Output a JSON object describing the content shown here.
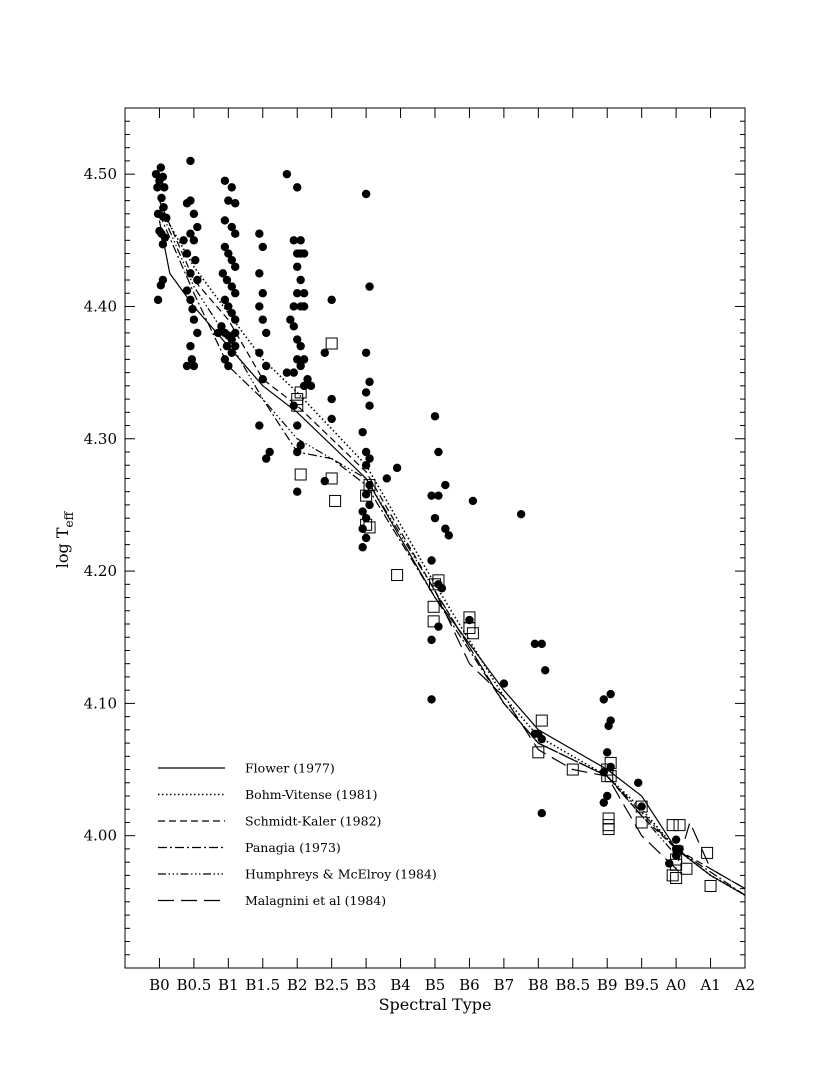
{
  "chart_data": {
    "type": "scatter",
    "xlabel": "Spectral Type",
    "ylabel": "log T",
    "ylabel_sub": "eff",
    "x_ticks": [
      {
        "x": 0,
        "label": "B0"
      },
      {
        "x": 0.5,
        "label": "B0.5"
      },
      {
        "x": 1,
        "label": "B1"
      },
      {
        "x": 1.5,
        "label": "B1.5"
      },
      {
        "x": 2,
        "label": "B2"
      },
      {
        "x": 2.5,
        "label": "B2.5"
      },
      {
        "x": 3,
        "label": "B3"
      },
      {
        "x": 3.5,
        "label": "B4"
      },
      {
        "x": 4,
        "label": "B5"
      },
      {
        "x": 4.5,
        "label": "B6"
      },
      {
        "x": 5,
        "label": "B7"
      },
      {
        "x": 5.5,
        "label": "B8"
      },
      {
        "x": 6,
        "label": "B8.5"
      },
      {
        "x": 6.5,
        "label": "B9"
      },
      {
        "x": 7,
        "label": "B9.5"
      },
      {
        "x": 7.5,
        "label": "A0"
      },
      {
        "x": 8,
        "label": "A1"
      },
      {
        "x": 8.5,
        "label": "A2"
      }
    ],
    "xlim": [
      -0.5,
      8.5
    ],
    "ylim": [
      3.9,
      4.55
    ],
    "y_ticks": [
      {
        "y": 4.0,
        "label": "4.00"
      },
      {
        "y": 4.1,
        "label": "4.10"
      },
      {
        "y": 4.2,
        "label": "4.20"
      },
      {
        "y": 4.3,
        "label": "4.30"
      },
      {
        "y": 4.4,
        "label": "4.40"
      },
      {
        "y": 4.5,
        "label": "4.50"
      }
    ],
    "series": [
      {
        "name": "Flower (1977)",
        "style": "solid",
        "x": [
          0,
          0.15,
          0.5,
          1,
          1.5,
          2,
          3,
          4,
          5,
          5.5,
          6.5,
          7,
          7.5,
          8,
          8.5
        ],
        "y": [
          4.465,
          4.425,
          4.4,
          4.37,
          4.34,
          4.32,
          4.27,
          4.18,
          4.11,
          4.08,
          4.05,
          4.03,
          3.99,
          3.97,
          3.955
        ]
      },
      {
        "name": "Bohm-Vitense (1981)",
        "style": "dotted",
        "x": [
          0,
          0.5,
          1,
          1.5,
          2,
          3,
          4,
          5,
          5.5,
          6.5,
          7,
          7.5,
          8,
          8.5
        ],
        "y": [
          4.475,
          4.43,
          4.395,
          4.36,
          4.335,
          4.28,
          4.19,
          4.105,
          4.075,
          4.045,
          4.02,
          3.99,
          3.97,
          3.955
        ]
      },
      {
        "name": "Schmidt-Kaler (1982)",
        "style": "dashed",
        "x": [
          0,
          0.5,
          1,
          1.5,
          2,
          3,
          4,
          5,
          5.5,
          6.5,
          7,
          7.5,
          8,
          8.5
        ],
        "y": [
          4.48,
          4.42,
          4.39,
          4.345,
          4.325,
          4.275,
          4.185,
          4.1,
          4.07,
          4.045,
          4.015,
          3.99,
          3.975,
          3.96
        ]
      },
      {
        "name": "Panagia (1973)",
        "style": "dashdot",
        "x": [
          0,
          0.5,
          1,
          1.5,
          2,
          2.5,
          3,
          4,
          5,
          5.5,
          6.5,
          7.5,
          8.5
        ],
        "y": [
          4.47,
          4.41,
          4.355,
          4.33,
          4.29,
          4.285,
          4.265,
          4.18,
          4.1,
          4.07,
          4.045,
          3.99,
          3.955
        ]
      },
      {
        "name": "Humphreys & McElroy (1984)",
        "style": "dashdotdotdot",
        "x": [
          0,
          0.5,
          1,
          1.5,
          2,
          3,
          4,
          5,
          5.5,
          6.5,
          7.5
        ],
        "y": [
          4.475,
          4.415,
          4.375,
          4.33,
          4.3,
          4.27,
          4.185,
          4.1,
          4.07,
          4.045,
          3.985
        ]
      },
      {
        "name": "Malagnini et al (1984)",
        "style": "longdash",
        "x": [
          4,
          4.5,
          5,
          5.5,
          6,
          6.5,
          7,
          7.5,
          7.7,
          8,
          8.5
        ],
        "y": [
          4.185,
          4.13,
          4.105,
          4.065,
          4.05,
          4.045,
          4.0,
          3.975,
          4.01,
          3.975,
          3.96
        ]
      }
    ],
    "filled_points": [
      [
        -0.05,
        4.5
      ],
      [
        -0.03,
        4.49
      ],
      [
        0,
        4.495
      ],
      [
        0.02,
        4.505
      ],
      [
        0.05,
        4.498
      ],
      [
        0.07,
        4.49
      ],
      [
        0.03,
        4.482
      ],
      [
        0.06,
        4.475
      ],
      [
        0.05,
        4.468
      ],
      [
        -0.02,
        4.47
      ],
      [
        0.03,
        4.455
      ],
      [
        0.08,
        4.452
      ],
      [
        0.1,
        4.467
      ],
      [
        0.05,
        4.447
      ],
      [
        0.02,
        4.416
      ],
      [
        0.05,
        4.42
      ],
      [
        -0.02,
        4.405
      ],
      [
        0.0,
        4.457
      ],
      [
        0.35,
        4.45
      ],
      [
        0.4,
        4.478
      ],
      [
        0.45,
        4.48
      ],
      [
        0.5,
        4.47
      ],
      [
        0.45,
        4.455
      ],
      [
        0.5,
        4.45
      ],
      [
        0.55,
        4.46
      ],
      [
        0.4,
        4.44
      ],
      [
        0.45,
        4.425
      ],
      [
        0.52,
        4.435
      ],
      [
        0.55,
        4.42
      ],
      [
        0.4,
        4.412
      ],
      [
        0.45,
        4.405
      ],
      [
        0.48,
        4.398
      ],
      [
        0.5,
        4.39
      ],
      [
        0.45,
        4.37
      ],
      [
        0.47,
        4.36
      ],
      [
        0.5,
        4.355
      ],
      [
        0.4,
        4.355
      ],
      [
        0.45,
        4.51
      ],
      [
        0.55,
        4.38
      ],
      [
        0.95,
        4.495
      ],
      [
        1.05,
        4.49
      ],
      [
        1.0,
        4.48
      ],
      [
        1.1,
        4.478
      ],
      [
        0.95,
        4.465
      ],
      [
        1.05,
        4.46
      ],
      [
        1.1,
        4.455
      ],
      [
        0.95,
        4.445
      ],
      [
        1.0,
        4.44
      ],
      [
        1.05,
        4.435
      ],
      [
        1.1,
        4.43
      ],
      [
        0.92,
        4.425
      ],
      [
        0.98,
        4.42
      ],
      [
        1.05,
        4.415
      ],
      [
        1.1,
        4.41
      ],
      [
        0.95,
        4.405
      ],
      [
        1.0,
        4.4
      ],
      [
        1.05,
        4.395
      ],
      [
        1.1,
        4.39
      ],
      [
        0.9,
        4.385
      ],
      [
        0.95,
        4.38
      ],
      [
        1.0,
        4.378
      ],
      [
        1.05,
        4.375
      ],
      [
        1.1,
        4.38
      ],
      [
        0.98,
        4.37
      ],
      [
        1.05,
        4.365
      ],
      [
        0.95,
        4.36
      ],
      [
        1.0,
        4.355
      ],
      [
        1.1,
        4.37
      ],
      [
        0.85,
        4.38
      ],
      [
        1.45,
        4.455
      ],
      [
        1.5,
        4.445
      ],
      [
        1.45,
        4.425
      ],
      [
        1.5,
        4.41
      ],
      [
        1.45,
        4.4
      ],
      [
        1.5,
        4.39
      ],
      [
        1.55,
        4.38
      ],
      [
        1.45,
        4.365
      ],
      [
        1.55,
        4.355
      ],
      [
        1.5,
        4.345
      ],
      [
        1.45,
        4.31
      ],
      [
        1.55,
        4.285
      ],
      [
        1.6,
        4.29
      ],
      [
        1.85,
        4.5
      ],
      [
        2.0,
        4.49
      ],
      [
        1.95,
        4.45
      ],
      [
        2.05,
        4.45
      ],
      [
        2.0,
        4.44
      ],
      [
        2.05,
        4.44
      ],
      [
        2.1,
        4.44
      ],
      [
        2.0,
        4.43
      ],
      [
        2.05,
        4.42
      ],
      [
        2.0,
        4.41
      ],
      [
        2.1,
        4.41
      ],
      [
        1.95,
        4.4
      ],
      [
        2.05,
        4.4
      ],
      [
        2.1,
        4.4
      ],
      [
        1.9,
        4.39
      ],
      [
        1.95,
        4.385
      ],
      [
        2.0,
        4.375
      ],
      [
        2.05,
        4.37
      ],
      [
        2.1,
        4.36
      ],
      [
        2.0,
        4.36
      ],
      [
        2.05,
        4.355
      ],
      [
        2.15,
        4.345
      ],
      [
        2.1,
        4.34
      ],
      [
        2.2,
        4.34
      ],
      [
        1.95,
        4.35
      ],
      [
        1.95,
        4.325
      ],
      [
        2.0,
        4.31
      ],
      [
        2.05,
        4.295
      ],
      [
        2.0,
        4.29
      ],
      [
        2.0,
        4.26
      ],
      [
        1.85,
        4.35
      ],
      [
        2.4,
        4.365
      ],
      [
        2.5,
        4.405
      ],
      [
        2.5,
        4.33
      ],
      [
        2.5,
        4.315
      ],
      [
        2.4,
        4.268
      ],
      [
        3.0,
        4.485
      ],
      [
        3.05,
        4.415
      ],
      [
        3.0,
        4.365
      ],
      [
        3.05,
        4.343
      ],
      [
        3.0,
        4.335
      ],
      [
        3.05,
        4.325
      ],
      [
        2.95,
        4.305
      ],
      [
        3.0,
        4.29
      ],
      [
        3.05,
        4.285
      ],
      [
        3.0,
        4.28
      ],
      [
        3.05,
        4.265
      ],
      [
        3.0,
        4.258
      ],
      [
        3.05,
        4.25
      ],
      [
        2.95,
        4.245
      ],
      [
        3.0,
        4.24
      ],
      [
        2.95,
        4.232
      ],
      [
        3.0,
        4.225
      ],
      [
        2.95,
        4.218
      ],
      [
        3.3,
        4.27
      ],
      [
        3.45,
        4.278
      ],
      [
        4.0,
        4.317
      ],
      [
        4.05,
        4.29
      ],
      [
        3.95,
        4.257
      ],
      [
        4.05,
        4.257
      ],
      [
        4.15,
        4.265
      ],
      [
        4.15,
        4.232
      ],
      [
        4.2,
        4.227
      ],
      [
        4.0,
        4.24
      ],
      [
        3.95,
        4.208
      ],
      [
        4.05,
        4.19
      ],
      [
        4.1,
        4.187
      ],
      [
        4.05,
        4.158
      ],
      [
        3.95,
        4.148
      ],
      [
        3.95,
        4.103
      ],
      [
        4.55,
        4.253
      ],
      [
        4.5,
        4.163
      ],
      [
        5.0,
        4.115
      ],
      [
        5.25,
        4.243
      ],
      [
        5.45,
        4.145
      ],
      [
        5.55,
        4.145
      ],
      [
        5.6,
        4.125
      ],
      [
        5.45,
        4.077
      ],
      [
        5.5,
        4.077
      ],
      [
        5.55,
        4.073
      ],
      [
        5.55,
        4.017
      ],
      [
        6.45,
        4.103
      ],
      [
        6.55,
        4.107
      ],
      [
        6.55,
        4.087
      ],
      [
        6.52,
        4.083
      ],
      [
        6.5,
        4.063
      ],
      [
        6.45,
        4.048
      ],
      [
        6.55,
        4.052
      ],
      [
        6.5,
        4.03
      ],
      [
        6.45,
        4.025
      ],
      [
        6.95,
        4.04
      ],
      [
        7.0,
        4.022
      ],
      [
        7.4,
        3.979
      ],
      [
        7.5,
        3.997
      ],
      [
        7.5,
        3.99
      ],
      [
        7.55,
        3.99
      ],
      [
        7.5,
        3.985
      ]
    ],
    "open_points": [
      [
        2.5,
        4.372
      ],
      [
        2.0,
        4.33
      ],
      [
        2.05,
        4.335
      ],
      [
        2.0,
        4.325
      ],
      [
        2.05,
        4.273
      ],
      [
        2.5,
        4.27
      ],
      [
        2.55,
        4.253
      ],
      [
        3.0,
        4.257
      ],
      [
        3.05,
        4.265
      ],
      [
        3.0,
        4.235
      ],
      [
        3.05,
        4.233
      ],
      [
        3.45,
        4.197
      ],
      [
        4.0,
        4.19
      ],
      [
        4.05,
        4.193
      ],
      [
        3.98,
        4.173
      ],
      [
        3.98,
        4.162
      ],
      [
        4.5,
        4.165
      ],
      [
        4.5,
        4.157
      ],
      [
        4.55,
        4.153
      ],
      [
        5.55,
        4.087
      ],
      [
        5.5,
        4.063
      ],
      [
        6.0,
        4.05
      ],
      [
        6.5,
        4.05
      ],
      [
        6.55,
        4.055
      ],
      [
        6.5,
        4.045
      ],
      [
        6.55,
        4.045
      ],
      [
        6.52,
        4.013
      ],
      [
        6.52,
        4.008
      ],
      [
        6.52,
        4.005
      ],
      [
        7.0,
        4.022
      ],
      [
        7.0,
        4.01
      ],
      [
        7.45,
        4.008
      ],
      [
        7.55,
        4.008
      ],
      [
        7.5,
        3.982
      ],
      [
        7.5,
        3.978
      ],
      [
        7.45,
        3.97
      ],
      [
        7.5,
        3.968
      ],
      [
        7.65,
        3.975
      ],
      [
        7.95,
        3.987
      ],
      [
        8.0,
        3.962
      ]
    ],
    "legend_position": "bottom-left"
  }
}
